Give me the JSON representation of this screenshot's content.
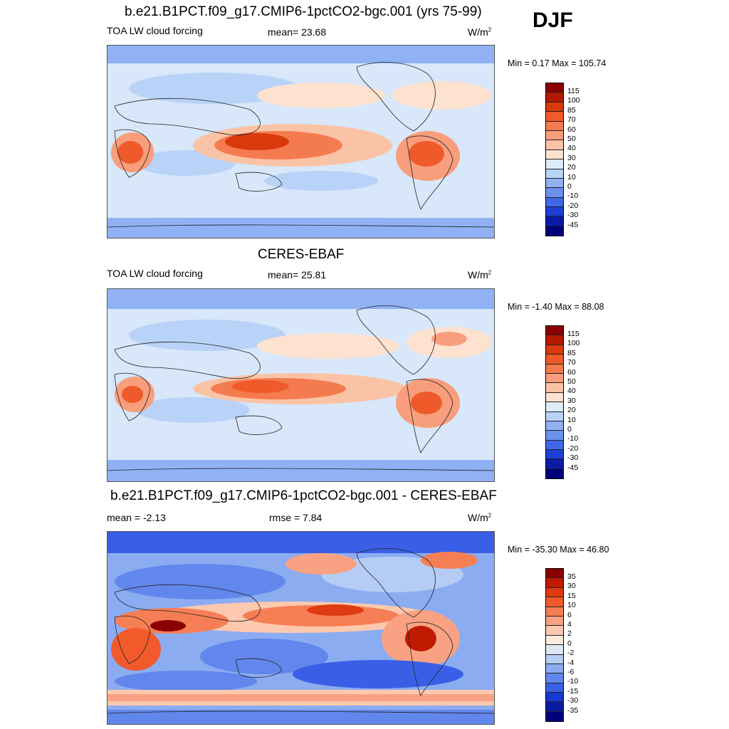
{
  "season": "DJF",
  "panels": [
    {
      "title": "b.e21.B1PCT.f09_g17.CMIP6-1pctCO2-bgc.001 (yrs 75-99)",
      "left_label": "TOA LW cloud forcing",
      "center_label": "mean=  23.68",
      "units": "W/m",
      "units_sup": "2",
      "minmax": "Min =   0.17 Max = 105.74",
      "cbar_labels": [
        "115",
        "100",
        "85",
        "70",
        "60",
        "50",
        "40",
        "30",
        "20",
        "10",
        "0",
        "-10",
        "-20",
        "-30",
        "-45"
      ],
      "cbar_colors": [
        "#8b0000",
        "#b21a00",
        "#d93a0d",
        "#ef5a2a",
        "#f47b4f",
        "#f89e7c",
        "#fbc3a6",
        "#fde2d0",
        "#deebf8",
        "#b9d2f7",
        "#90b2f5",
        "#6b91ee",
        "#3f69e8",
        "#1d3fd4",
        "#0a1ba8",
        "#00007a"
      ]
    },
    {
      "title": "CERES-EBAF",
      "left_label": "TOA LW cloud forcing",
      "center_label": "mean=  25.81",
      "units": "W/m",
      "units_sup": "2",
      "minmax": "Min =  -1.40 Max =  88.08",
      "cbar_labels": [
        "115",
        "100",
        "85",
        "70",
        "60",
        "50",
        "40",
        "30",
        "20",
        "10",
        "0",
        "-10",
        "-20",
        "-30",
        "-45"
      ],
      "cbar_colors": [
        "#8b0000",
        "#b21a00",
        "#d93a0d",
        "#ef5a2a",
        "#f47b4f",
        "#f89e7c",
        "#fbc3a6",
        "#fde2d0",
        "#deebf8",
        "#b9d2f7",
        "#90b2f5",
        "#6b91ee",
        "#3f69e8",
        "#1d3fd4",
        "#0a1ba8",
        "#00007a"
      ]
    },
    {
      "title": "b.e21.B1PCT.f09_g17.CMIP6-1pctCO2-bgc.001 - CERES-EBAF",
      "left_label": "mean =  -2.13",
      "center_label": "rmse =   7.84",
      "units": "W/m",
      "units_sup": "2",
      "minmax": "Min = -35.30 Max =  46.80",
      "cbar_labels": [
        "35",
        "30",
        "15",
        "10",
        "6",
        "4",
        "2",
        "0",
        "-2",
        "-4",
        "-6",
        "-10",
        "-15",
        "-30",
        "-35"
      ],
      "cbar_colors": [
        "#8b0000",
        "#c01a00",
        "#e03a10",
        "#f25a2c",
        "#f67e55",
        "#f9a283",
        "#fcc9ae",
        "#fdecde",
        "#dde8f7",
        "#b5cdf5",
        "#8cacf2",
        "#6287ec",
        "#3a5fe6",
        "#1838cf",
        "#0a1aa3",
        "#00007a"
      ]
    }
  ]
}
